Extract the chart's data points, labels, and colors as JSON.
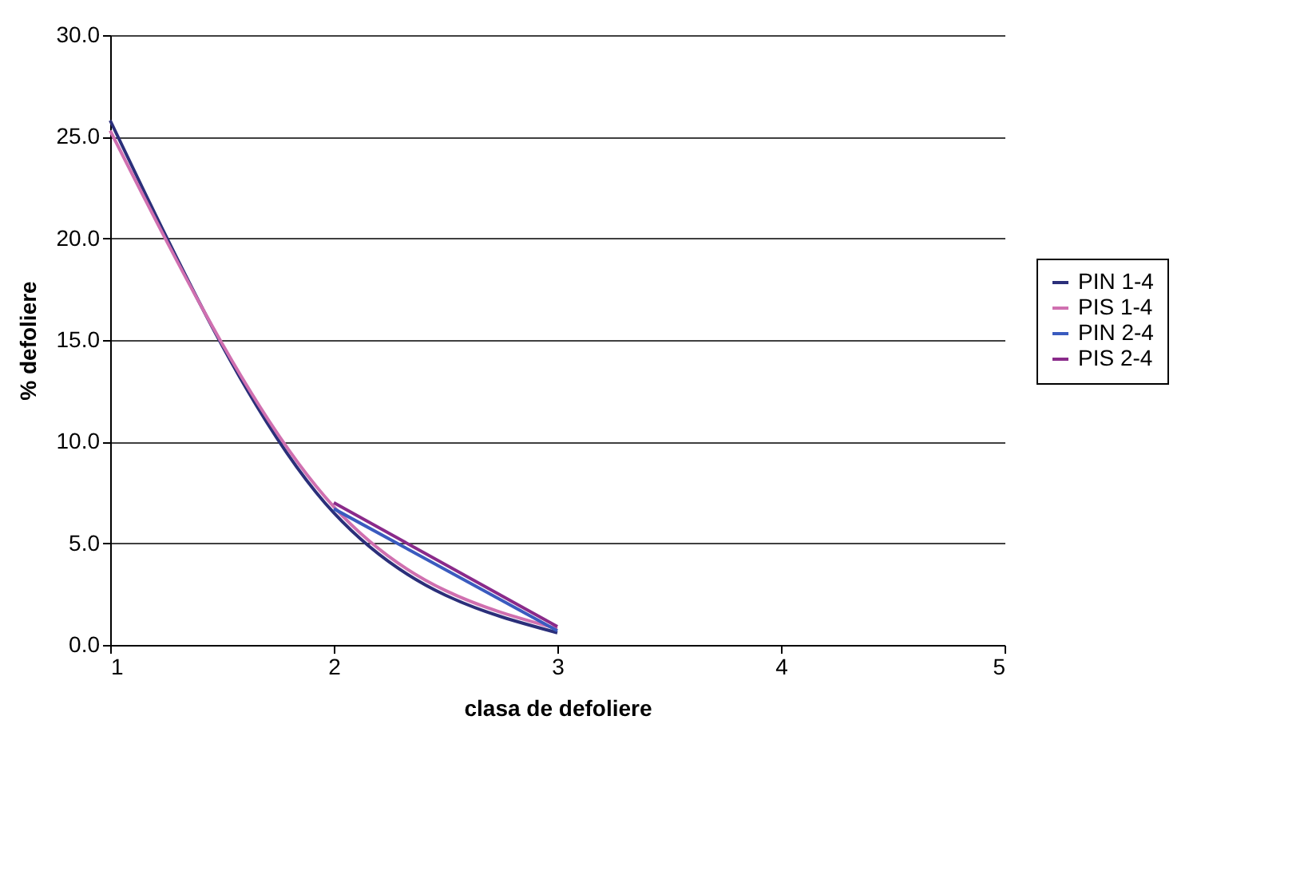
{
  "chart_data": {
    "type": "line",
    "xlabel": "clasa de defoliere",
    "ylabel": "% defoliere",
    "x": [
      1,
      2,
      3
    ],
    "series": [
      {
        "name": "PIN 1-4",
        "color": "#2b2f7a",
        "values": [
          25.8,
          6.5,
          0.6
        ]
      },
      {
        "name": "PIS 1-4",
        "color": "#d070b0",
        "values": [
          25.3,
          6.8,
          0.8
        ]
      },
      {
        "name": "PIN 2-4",
        "color": "#3a5bbf",
        "values": [
          null,
          6.7,
          0.7
        ]
      },
      {
        "name": "PIS 2-4",
        "color": "#8a2a8a",
        "values": [
          null,
          7.0,
          0.9
        ]
      }
    ],
    "xlim": [
      1,
      5
    ],
    "xticks": [
      1,
      2,
      3,
      4,
      5
    ],
    "ylim": [
      0,
      30
    ],
    "yticks": [
      {
        "value": 0,
        "label": "0.0"
      },
      {
        "value": 5,
        "label": "5.0"
      },
      {
        "value": 10,
        "label": "10.0"
      },
      {
        "value": 15,
        "label": "15.0"
      },
      {
        "value": 20,
        "label": "20.0"
      },
      {
        "value": 25,
        "label": "25.0"
      },
      {
        "value": 30,
        "label": "30.0"
      }
    ],
    "grid": "y",
    "legend": "right",
    "marker": "none",
    "line_style": "solid"
  }
}
